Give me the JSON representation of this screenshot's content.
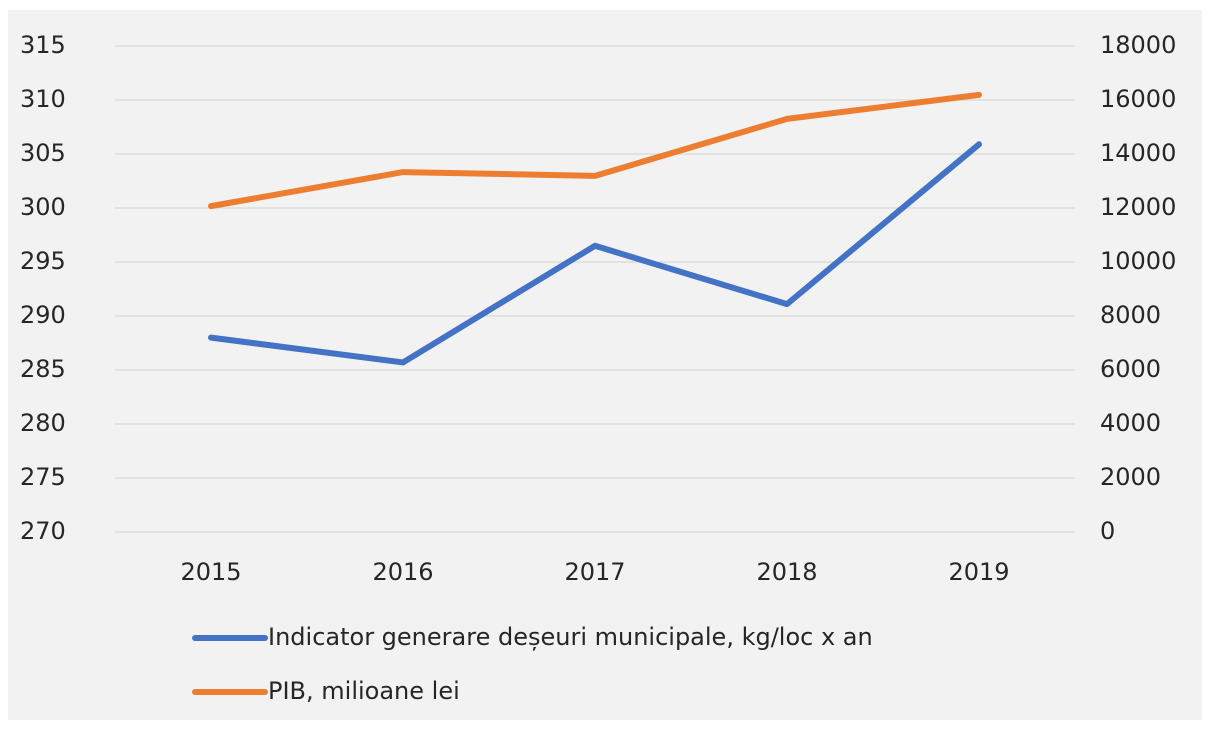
{
  "chart_data": {
    "type": "line",
    "categories": [
      "2015",
      "2016",
      "2017",
      "2018",
      "2019"
    ],
    "series": [
      {
        "name": "Indicator generare deșeuri municipale, kg/loc x an",
        "color": "#4472c4",
        "values": [
          288,
          285.7,
          296.5,
          291.1,
          305.9
        ]
      },
      {
        "name": "PIB, milioane lei",
        "color": "#ed7d31",
        "axis": "y2",
        "values": [
          12070,
          13330,
          13190,
          15300,
          16190
        ]
      }
    ],
    "ylim": [
      270,
      315
    ],
    "yticks": [
      270,
      275,
      280,
      285,
      290,
      295,
      300,
      305,
      310,
      315
    ],
    "y2lim": [
      0,
      18000
    ],
    "y2ticks": [
      0,
      2000,
      4000,
      6000,
      8000,
      10000,
      12000,
      14000,
      16000,
      18000
    ],
    "grid": true,
    "legend": "bottom"
  }
}
